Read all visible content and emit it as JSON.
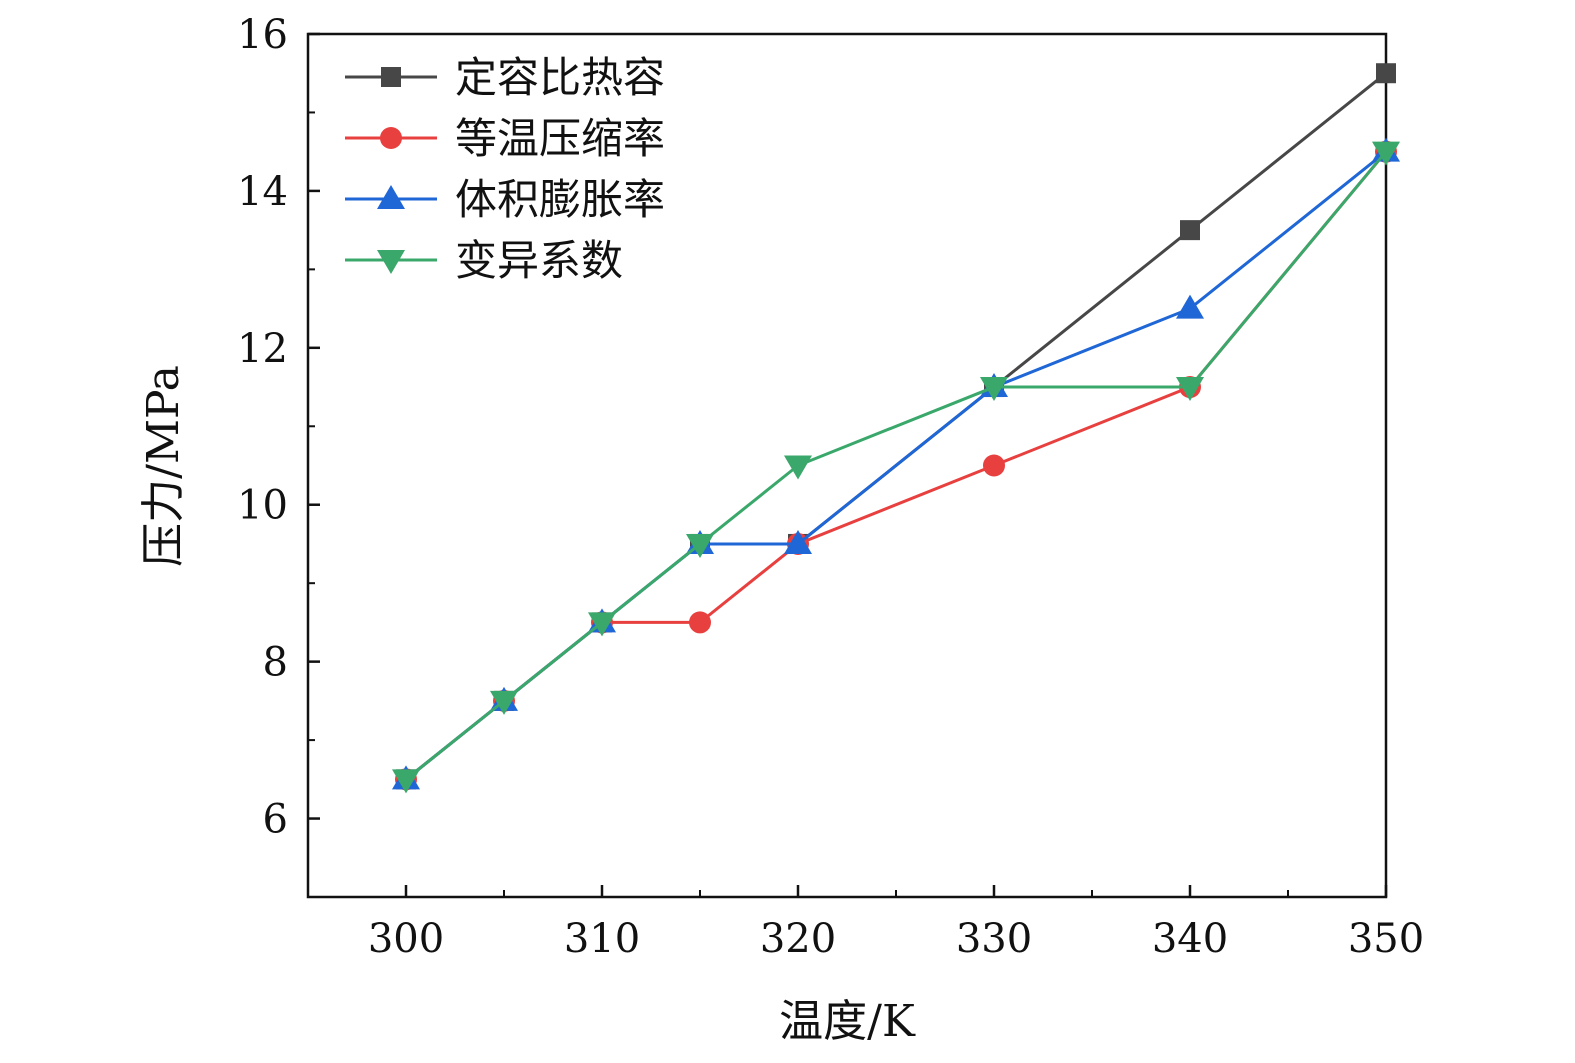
{
  "chart_data": {
    "type": "line",
    "title": "",
    "xlabel": "温度/K",
    "ylabel": "压力/MPa",
    "xlim": [
      295,
      350
    ],
    "ylim": [
      5,
      16
    ],
    "xticks": [
      300,
      310,
      320,
      330,
      340,
      350
    ],
    "yticks": [
      6,
      8,
      10,
      12,
      14,
      16
    ],
    "x_minor_ticks": [
      305,
      315,
      325,
      335,
      345
    ],
    "y_minor_ticks": [
      5,
      7,
      9,
      11,
      13,
      15
    ],
    "x": [
      300,
      305,
      310,
      315,
      320,
      330,
      340,
      350
    ],
    "legend_position": "top-left",
    "series": [
      {
        "name": "定容比热容",
        "color": "#474747",
        "marker": "square",
        "values": [
          6.5,
          7.5,
          8.5,
          9.5,
          9.5,
          11.5,
          13.5,
          15.5
        ]
      },
      {
        "name": "等温压缩率",
        "color": "#e8403f",
        "marker": "circle",
        "values": [
          6.5,
          7.5,
          8.5,
          8.5,
          9.5,
          10.5,
          11.5,
          14.5
        ]
      },
      {
        "name": "体积膨胀率",
        "color": "#1f66d6",
        "marker": "triangle-up",
        "values": [
          6.5,
          7.5,
          8.5,
          9.5,
          9.5,
          11.5,
          12.5,
          14.5
        ]
      },
      {
        "name": "变异系数",
        "color": "#3aa86b",
        "marker": "triangle-down",
        "values": [
          6.5,
          7.5,
          8.5,
          9.5,
          10.5,
          11.5,
          11.5,
          14.5
        ]
      }
    ]
  }
}
